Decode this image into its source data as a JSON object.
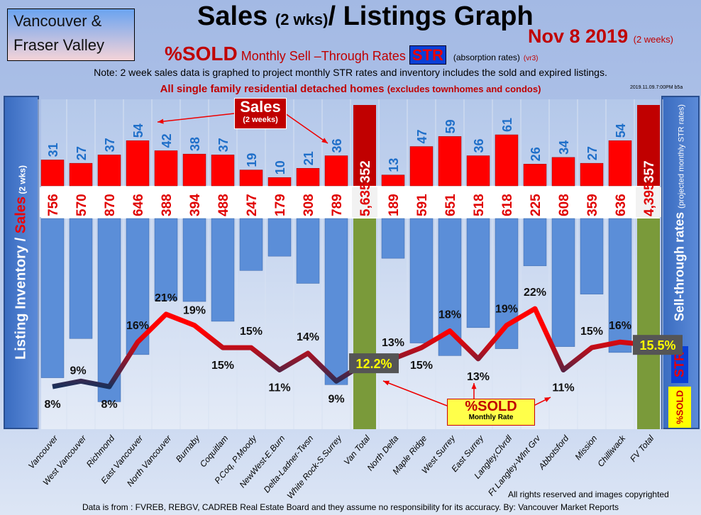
{
  "header": {
    "region_line1": "Vancouver &",
    "region_line2": "Fraser Valley",
    "title_main": "Sales ",
    "title_small": "(2 wks)",
    "title_end": "/ Listings Graph",
    "date": "Nov 8 2019",
    "date_note": "(2 weeks)",
    "sold": "%SOLD",
    "str_text": "Monthly Sell –Through Rates",
    "str_badge": "STR",
    "absorption": "(absorption rates)",
    "version": "(vr3)",
    "note": "Note: 2 week sales data is graphed to project monthly STR rates and inventory includes the sold and expired listings.",
    "homes": "All single family residential detached homes",
    "homes_note": "(excludes townhomes and condos)",
    "stamp": "2019.11.09.7:00PM b5a"
  },
  "side": {
    "left_a": "Listing Inventory / ",
    "left_b": "Sales",
    "left_c": " (2 wks)",
    "right_a": "Sell-through rates ",
    "right_b": "(projected monthly STR rates)",
    "str": "STR",
    "sold": "%SOLD"
  },
  "callouts": {
    "sales": "Sales",
    "sales_sub": "(2 weeks)",
    "sold": "%SOLD",
    "sold_sub": "Monthly Rate"
  },
  "footer": {
    "rights": "All rights reserved and  images copyrighted",
    "source": "Data is from : FVREB, REBGV, CADREB Real Estate Board and they assume no responsibility for its accuracy. By: Vancouver Market Reports"
  },
  "colors": {
    "sales": "#ff0000",
    "inventory": "#5b8ed8",
    "total": "#7a9a3a",
    "total_sales": "#c00000",
    "line_low": "#1a2f5a",
    "line_high": "#ff0000"
  },
  "chart_data": {
    "type": "bar",
    "categories": [
      "Vancouver",
      "West Vancouver",
      "Richmond",
      "East Vancouver",
      "North Vancouver",
      "Burnaby",
      "Coquitlam",
      "P.Coq, P.Moody",
      "NewWest-E.Burn",
      "Delta-Ladner-Twsn",
      "White Rock-S.Surrey",
      "Van Total",
      "North Delta",
      "Maple Ridge",
      "West Surrey",
      "East Surrey",
      "Langley,Clvrdl",
      "Ft Langley-Wlnt Grv",
      "Abbotsford",
      "Mission",
      "Chilliwack",
      "FV Total"
    ],
    "series": [
      {
        "name": "Sales (2 weeks)",
        "values": [
          31,
          27,
          37,
          54,
          42,
          38,
          37,
          19,
          10,
          21,
          36,
          352,
          13,
          47,
          59,
          36,
          61,
          26,
          34,
          27,
          54,
          357
        ],
        "labels": [
          "31",
          "27",
          "37",
          "54",
          "42",
          "38",
          "37",
          "19",
          "10",
          "21",
          "36",
          "352",
          "13",
          "47",
          "59",
          "36",
          "61",
          "26",
          "34",
          "27",
          "54",
          "357"
        ]
      },
      {
        "name": "Listing Inventory",
        "values": [
          756,
          570,
          870,
          646,
          388,
          394,
          488,
          247,
          179,
          308,
          789,
          5635,
          189,
          591,
          651,
          518,
          618,
          225,
          608,
          359,
          636,
          4395
        ],
        "labels": [
          "756",
          "570",
          "870",
          "646",
          "388",
          "394",
          "488",
          "247",
          "179",
          "308",
          "789",
          "5,635",
          "189",
          "591",
          "651",
          "518",
          "618",
          "225",
          "608",
          "359",
          "636",
          "4,395"
        ]
      },
      {
        "name": "%SOLD Monthly STR",
        "type": "line",
        "values": [
          8,
          9,
          8,
          16,
          21,
          19,
          15,
          15,
          11,
          14,
          9,
          12.2,
          13,
          15,
          18,
          13,
          19,
          22,
          11,
          15,
          16,
          15.5
        ],
        "labels": [
          "8%",
          "9%",
          "8%",
          "16%",
          "21%",
          "19%",
          "15%",
          "15%",
          "11%",
          "14%",
          "9%",
          "12.2%",
          "13%",
          "15%",
          "18%",
          "13%",
          "19%",
          "22%",
          "11%",
          "15%",
          "16%",
          "15.5%"
        ]
      }
    ],
    "totals": [
      "Van Total",
      "FV Total"
    ]
  }
}
